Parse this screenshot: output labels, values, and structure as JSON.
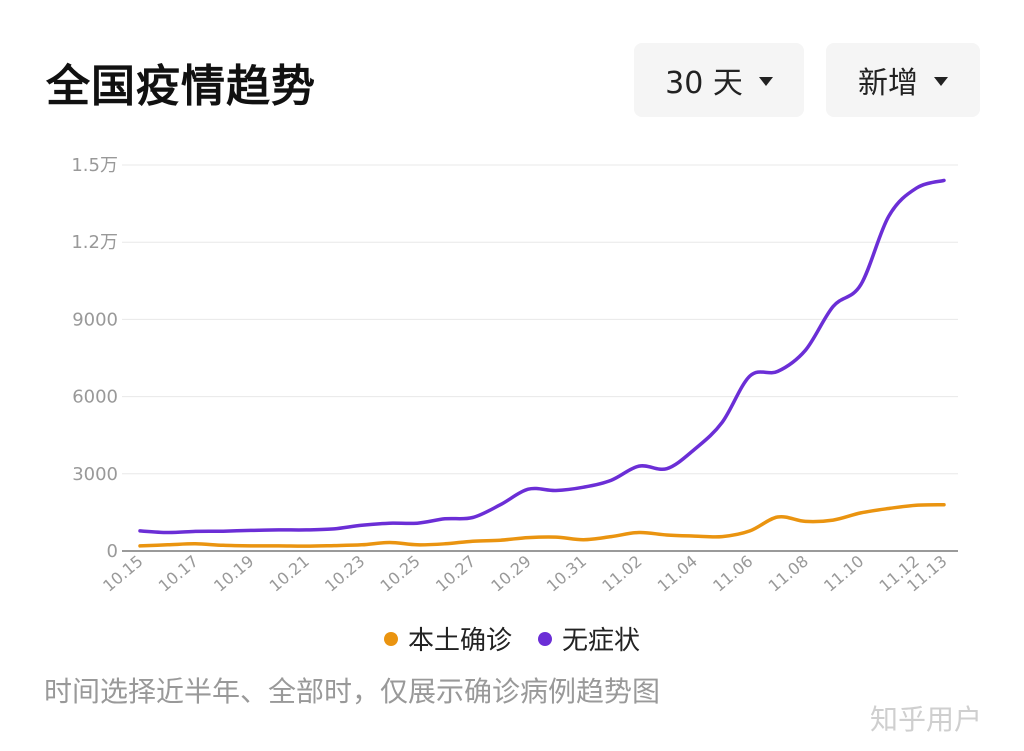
{
  "header": {
    "title": "全国疫情趋势"
  },
  "controls": {
    "range_label": "30 天",
    "metric_label": "新增"
  },
  "note": "时间选择近半年、全部时，仅展示确诊病例趋势图",
  "watermark": "知乎用户",
  "colors": {
    "local_confirmed": "#ea9410",
    "asymptomatic": "#6b2ed6",
    "grid": "#e8e8e8",
    "axis": "#999999"
  },
  "chart_data": {
    "type": "line",
    "title": "全国疫情趋势",
    "xlabel": "",
    "ylabel": "",
    "ylim": [
      0,
      15000
    ],
    "yticks": [
      0,
      3000,
      6000,
      9000,
      12000,
      15000
    ],
    "ytick_labels": [
      "0",
      "3000",
      "6000",
      "9000",
      "1.2万",
      "1.5万"
    ],
    "grid": true,
    "legend_position": "bottom",
    "x": [
      "10.15",
      "10.16",
      "10.17",
      "10.18",
      "10.19",
      "10.20",
      "10.21",
      "10.22",
      "10.23",
      "10.24",
      "10.25",
      "10.26",
      "10.27",
      "10.28",
      "10.29",
      "10.30",
      "10.31",
      "11.01",
      "11.02",
      "11.03",
      "11.04",
      "11.05",
      "11.06",
      "11.07",
      "11.08",
      "11.09",
      "11.10",
      "11.11",
      "11.12",
      "11.13"
    ],
    "xtick_labels": [
      "10.15",
      "10.17",
      "10.19",
      "10.21",
      "10.23",
      "10.25",
      "10.27",
      "10.29",
      "10.31",
      "11.02",
      "11.04",
      "11.06",
      "11.08",
      "11.10",
      "11.12",
      "11.13"
    ],
    "series": [
      {
        "name": "本土确诊",
        "values": [
          200,
          240,
          280,
          220,
          200,
          200,
          190,
          210,
          240,
          330,
          240,
          280,
          380,
          420,
          520,
          540,
          440,
          560,
          720,
          620,
          580,
          560,
          780,
          1320,
          1150,
          1200,
          1480,
          1650,
          1780,
          1800
        ]
      },
      {
        "name": "无症状",
        "values": [
          780,
          720,
          760,
          770,
          800,
          820,
          820,
          860,
          1000,
          1080,
          1080,
          1250,
          1300,
          1800,
          2400,
          2350,
          2480,
          2750,
          3300,
          3200,
          3950,
          5000,
          6800,
          6980,
          7800,
          9500,
          10350,
          13000,
          14100,
          14400
        ]
      }
    ]
  }
}
